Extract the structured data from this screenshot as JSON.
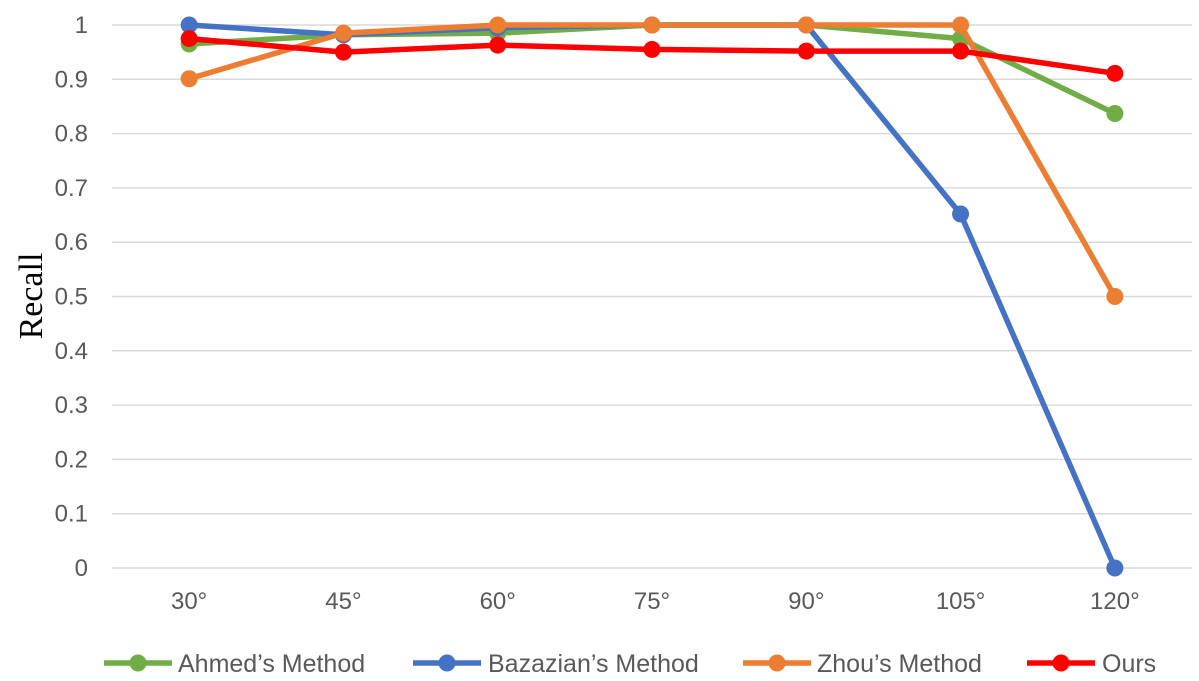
{
  "chart_data": {
    "type": "line",
    "title": "",
    "xlabel": "",
    "ylabel": "Recall",
    "categories": [
      "30°",
      "45°",
      "60°",
      "75°",
      "90°",
      "105°",
      "120°"
    ],
    "ylim": [
      0,
      1
    ],
    "yticks": [
      "0",
      "0.1",
      "0.2",
      "0.3",
      "0.4",
      "0.5",
      "0.6",
      "0.7",
      "0.8",
      "0.9",
      "1"
    ],
    "grid": true,
    "legend_position": "bottom",
    "series": [
      {
        "name": "Ahmed’s Method",
        "color": "#70ad47",
        "values": [
          0.965,
          0.982,
          0.985,
          1.0,
          1.0,
          0.975,
          0.837
        ]
      },
      {
        "name": "Bazazian’s Method",
        "color": "#4472c4",
        "values": [
          1.0,
          0.982,
          0.995,
          1.0,
          1.0,
          0.652,
          0.0
        ]
      },
      {
        "name": "Zhou’s Method",
        "color": "#ed7d31",
        "values": [
          0.901,
          0.985,
          1.0,
          1.0,
          1.0,
          1.0,
          0.5
        ]
      },
      {
        "name": "Ours",
        "color": "#ff0000",
        "values": [
          0.975,
          0.95,
          0.963,
          0.955,
          0.952,
          0.952,
          0.911
        ]
      }
    ]
  }
}
